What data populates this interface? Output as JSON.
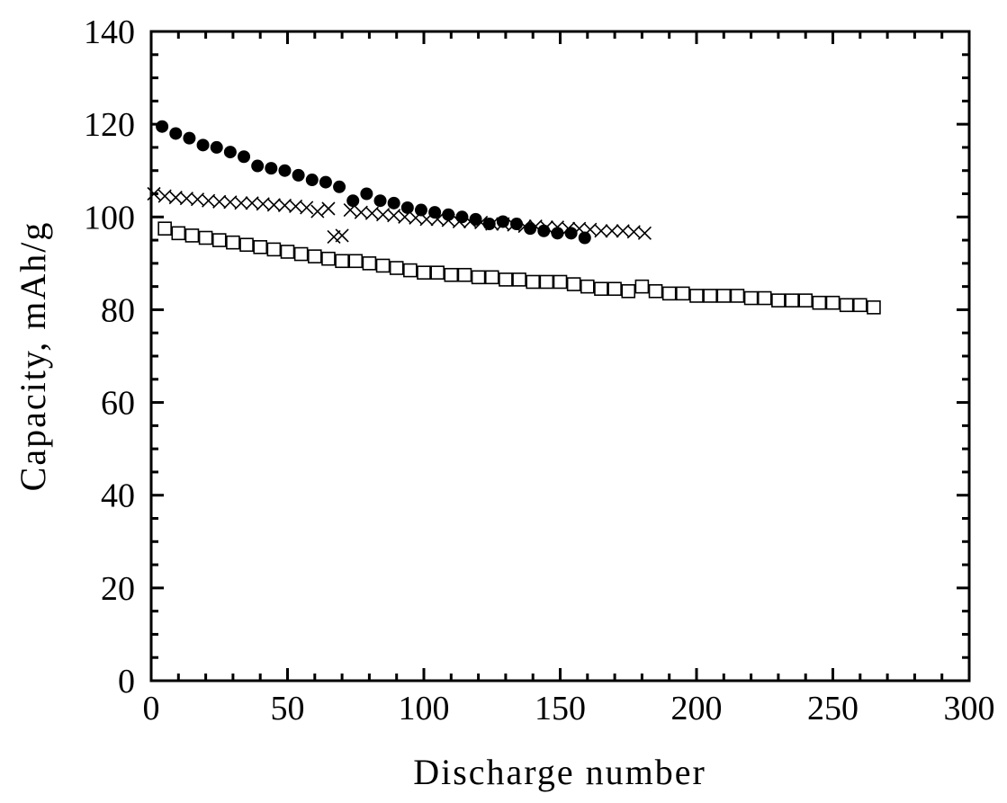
{
  "chart_data": {
    "type": "scatter",
    "xlabel": "Discharge number",
    "ylabel": "Capacity, mAh/g",
    "xlim": [
      0,
      300
    ],
    "xticks": [
      0,
      50,
      100,
      150,
      200,
      250,
      300
    ],
    "ylim": [
      0,
      140
    ],
    "yticks": [
      0,
      20,
      40,
      60,
      80,
      100,
      120,
      140
    ],
    "grid": false,
    "series": [
      {
        "marker": "filled-circle",
        "color": "#000000",
        "x": [
          4,
          9,
          14,
          19,
          24,
          29,
          34,
          39,
          44,
          49,
          54,
          59,
          64,
          69,
          74,
          79,
          84,
          89,
          94,
          99,
          104,
          109,
          114,
          119,
          124,
          129,
          134,
          139,
          144,
          149,
          154,
          159
        ],
        "values": [
          119.5,
          118,
          117,
          115.5,
          115,
          114,
          113,
          111,
          110.5,
          110,
          109,
          108,
          107.5,
          106.5,
          103.5,
          105,
          103.5,
          103,
          102,
          101.5,
          101,
          100.5,
          100,
          99.5,
          98.5,
          99,
          98.5,
          97.5,
          97,
          96.5,
          96.5,
          95.5
        ]
      },
      {
        "marker": "cross",
        "color": "#000000",
        "x": [
          1,
          5,
          9,
          13,
          17,
          21,
          25,
          29,
          33,
          37,
          41,
          45,
          49,
          53,
          57,
          61,
          65,
          67,
          70,
          73,
          77,
          81,
          85,
          89,
          93,
          97,
          101,
          105,
          109,
          113,
          117,
          121,
          125,
          129,
          133,
          137,
          141,
          145,
          149,
          153,
          157,
          161,
          165,
          169,
          173,
          177,
          181
        ],
        "values": [
          105,
          104.5,
          104.2,
          104,
          103.8,
          103.5,
          103.3,
          103.2,
          103,
          103,
          102.8,
          102.6,
          102.5,
          102.3,
          102,
          101.2,
          101.8,
          95.7,
          96,
          101.5,
          101,
          100.8,
          100.5,
          100.3,
          100,
          99.8,
          99.5,
          99.5,
          99.3,
          99,
          99,
          98.8,
          98.5,
          98.5,
          98.3,
          98,
          98,
          97.8,
          97.8,
          97.5,
          97.5,
          97.3,
          97,
          97,
          97,
          96.8,
          96.5
        ]
      },
      {
        "marker": "open-square",
        "color": "#000000",
        "x": [
          5,
          10,
          15,
          20,
          25,
          30,
          35,
          40,
          45,
          50,
          55,
          60,
          65,
          70,
          75,
          80,
          85,
          90,
          95,
          100,
          105,
          110,
          115,
          120,
          125,
          130,
          135,
          140,
          145,
          150,
          155,
          160,
          165,
          170,
          175,
          180,
          185,
          190,
          195,
          200,
          205,
          210,
          215,
          220,
          225,
          230,
          235,
          240,
          245,
          250,
          255,
          260,
          265
        ],
        "values": [
          97.5,
          96.5,
          96,
          95.5,
          95,
          94.5,
          94,
          93.5,
          93,
          92.5,
          92,
          91.5,
          91,
          90.5,
          90.5,
          90,
          89.5,
          89,
          88.5,
          88,
          88,
          87.5,
          87.5,
          87,
          87,
          86.5,
          86.5,
          86,
          86,
          86,
          85.5,
          85,
          84.5,
          84.5,
          84,
          85,
          84,
          83.5,
          83.5,
          83,
          83,
          83,
          83,
          82.5,
          82.5,
          82,
          82,
          82,
          81.5,
          81.5,
          81,
          81,
          80.5
        ]
      }
    ]
  }
}
